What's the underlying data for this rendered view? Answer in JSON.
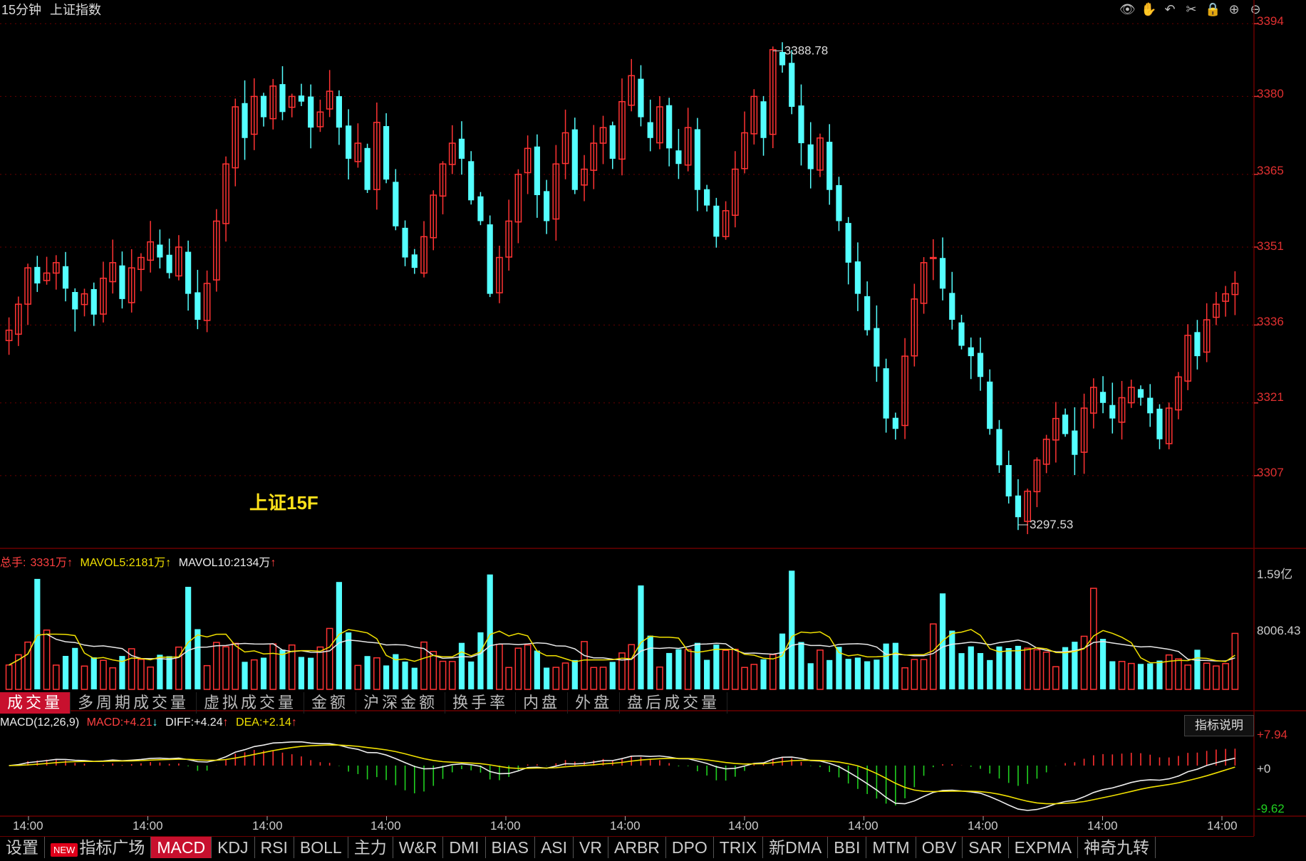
{
  "header": {
    "period": "15分钟",
    "instrument": "上证指数"
  },
  "toolbar_icons": [
    "eye-icon",
    "hand-icon",
    "undo-icon",
    "scissors-icon",
    "lock-icon",
    "zoom-in-icon",
    "zoom-out-icon"
  ],
  "overlay_text": "上证15F",
  "colors": {
    "up": "#ff3333",
    "down": "#54ffff",
    "ma5": "#f0e000",
    "ma10": "#e8e8e8",
    "grid": "#6a0000",
    "macd_pos": "#ff3030",
    "macd_neg": "#20d020"
  },
  "price_axis": {
    "ticks": [
      "3394",
      "3380",
      "3365",
      "3351",
      "3336",
      "3321",
      "3307"
    ],
    "min": 3293,
    "max": 3395
  },
  "annotations": {
    "high": "3388.78",
    "low": "3297.53"
  },
  "volume_legend": {
    "total_label": "总手:",
    "total_value": "3331万",
    "total_arrow": "↑",
    "mavol5_label": "MAVOL5:",
    "mavol5_value": "2181万",
    "mavol5_arrow": "↑",
    "mavol10_label": "MAVOL10:",
    "mavol10_value": "2134万",
    "mavol10_arrow": "↑"
  },
  "volume_axis": {
    "top": "1.59亿",
    "mid": "8006.43"
  },
  "volume_tabs": [
    "成交量",
    "多周期成交量",
    "虚拟成交量",
    "金额",
    "沪深金额",
    "换手率",
    "内盘",
    "外盘",
    "盘后成交量"
  ],
  "macd_legend": {
    "name": "MACD(12,26,9)",
    "macd_label": "MACD:",
    "macd_value": "+4.21",
    "macd_arrow": "↓",
    "diff_label": "DIFF:",
    "diff_value": "+4.24",
    "diff_arrow": "↑",
    "dea_label": "DEA:",
    "dea_value": "+2.14",
    "dea_arrow": "↑"
  },
  "macd_axis": {
    "top": "+7.94",
    "zero": "+0",
    "bottom": "-9.62"
  },
  "explain_button": "指标说明",
  "x_axis_labels": [
    "14:00",
    "14:00",
    "14:00",
    "14:00",
    "14:00",
    "14:00",
    "14:00",
    "14:00",
    "14:00",
    "14:00",
    "14:00"
  ],
  "bottom_tabs": {
    "settings": "设置",
    "new_badge": "NEW",
    "plaza": "指标广场",
    "items": [
      "MACD",
      "KDJ",
      "RSI",
      "BOLL",
      "主力",
      "W&R",
      "DMI",
      "BIAS",
      "ASI",
      "VR",
      "ARBR",
      "DPO",
      "TRIX",
      "新DMA",
      "BBI",
      "MTM",
      "OBV",
      "SAR",
      "EXPMA",
      "神奇九转"
    ]
  },
  "chart_data": {
    "type": "candlestick",
    "closes": [
      3335,
      3340,
      3347,
      3344,
      3346,
      3348,
      3343,
      3339,
      3342,
      3338,
      3345,
      3348,
      3341,
      3347,
      3349,
      3352,
      3349,
      3346,
      3351,
      3342,
      3337,
      3344,
      3356,
      3367,
      3378,
      3372,
      3380,
      3376,
      3382,
      3377,
      3380,
      3379,
      3374,
      3377,
      3381,
      3374,
      3368,
      3371,
      3362,
      3375,
      3364,
      3355,
      3349,
      3347,
      3353,
      3361,
      3367,
      3371,
      3368,
      3360,
      3356,
      3342,
      3349,
      3356,
      3365,
      3370,
      3361,
      3356,
      3367,
      3373,
      3362,
      3366,
      3371,
      3374,
      3368,
      3379,
      3384,
      3376,
      3372,
      3378,
      3370,
      3367,
      3374,
      3362,
      3359,
      3353,
      3358,
      3366,
      3373,
      3380,
      3372,
      3389,
      3386,
      3378,
      3371,
      3366,
      3372,
      3362,
      3356,
      3348,
      3342,
      3335,
      3328,
      3318,
      3316,
      3330,
      3341,
      3348,
      3349,
      3343,
      3337,
      3332,
      3330,
      3326,
      3316,
      3309,
      3303,
      3299,
      3304,
      3310,
      3314,
      3318,
      3315,
      3311,
      3320,
      3324,
      3321,
      3318,
      3322,
      3324,
      3322,
      3319,
      3314,
      3320,
      3326,
      3334,
      3330,
      3337,
      3340,
      3342,
      3344
    ],
    "high": "3388.78",
    "low": "3297.53",
    "volume_ma5": "2181万",
    "volume_ma10": "2134万",
    "macd": {
      "diff": "+4.24",
      "dea": "+2.14",
      "macd": "+4.21",
      "range": [
        -9.62,
        7.94
      ]
    }
  }
}
